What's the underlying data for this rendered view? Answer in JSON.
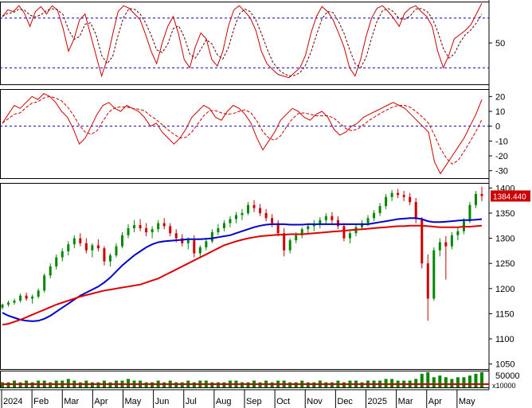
{
  "chart_data": [
    {
      "type": "line",
      "panel": "oscillator-1",
      "y_ticks": [
        50
      ],
      "ylim": [
        0,
        100
      ],
      "overbought": 80,
      "oversold": 20,
      "series_colors": {
        "main": "#cc0000",
        "signal": "#660000"
      },
      "values": [
        82,
        90,
        88,
        95,
        86,
        70,
        88,
        94,
        85,
        95,
        90,
        68,
        40,
        55,
        78,
        85,
        60,
        35,
        10,
        30,
        60,
        88,
        95,
        92,
        85,
        78,
        60,
        40,
        25,
        50,
        70,
        82,
        60,
        30,
        20,
        45,
        62,
        55,
        30,
        22,
        40,
        70,
        90,
        95,
        88,
        80,
        65,
        40,
        25,
        18,
        12,
        10,
        8,
        14,
        20,
        35,
        62,
        82,
        94,
        88,
        78,
        62,
        45,
        20,
        10,
        30,
        58,
        80,
        92,
        95,
        88,
        80,
        70,
        86,
        92,
        95,
        88,
        82,
        70,
        40,
        20,
        35,
        55,
        60,
        65,
        72,
        85,
        98
      ]
    },
    {
      "type": "line",
      "panel": "oscillator-2",
      "y_ticks": [
        20,
        10,
        0,
        -10,
        -20,
        -30
      ],
      "ylim": [
        -35,
        25
      ],
      "zero_line": 0,
      "series_colors": {
        "main": "#cc0000",
        "signal": "#cc0000"
      },
      "values": [
        2,
        8,
        14,
        12,
        16,
        20,
        18,
        22,
        20,
        16,
        10,
        6,
        -2,
        -12,
        -8,
        0,
        8,
        14,
        16,
        12,
        10,
        14,
        12,
        10,
        6,
        0,
        2,
        -4,
        -8,
        -12,
        -8,
        -2,
        6,
        10,
        14,
        12,
        6,
        4,
        10,
        14,
        12,
        8,
        2,
        -8,
        -16,
        -10,
        -4,
        4,
        8,
        12,
        10,
        6,
        4,
        8,
        10,
        6,
        -2,
        -6,
        -4,
        0,
        2,
        6,
        8,
        10,
        12,
        14,
        16,
        14,
        12,
        8,
        4,
        0,
        -4,
        -24,
        -32,
        -26,
        -20,
        -14,
        -8,
        0,
        8,
        18
      ]
    },
    {
      "type": "candlestick",
      "panel": "price",
      "y_ticks": [
        1400,
        1350,
        1300,
        1250,
        1200,
        1150,
        1100,
        1050
      ],
      "ylim": [
        1040,
        1410
      ],
      "last_price_label": "1384.440",
      "ma_colors": {
        "short": "#0000cc",
        "long": "#dd0000"
      },
      "candles": [
        [
          1162,
          1170,
          1158,
          1168
        ],
        [
          1168,
          1176,
          1164,
          1172
        ],
        [
          1172,
          1180,
          1168,
          1176
        ],
        [
          1176,
          1190,
          1172,
          1186
        ],
        [
          1186,
          1192,
          1176,
          1180
        ],
        [
          1180,
          1188,
          1170,
          1184
        ],
        [
          1184,
          1200,
          1180,
          1196
        ],
        [
          1196,
          1230,
          1192,
          1226
        ],
        [
          1226,
          1250,
          1220,
          1244
        ],
        [
          1244,
          1268,
          1238,
          1262
        ],
        [
          1262,
          1280,
          1254,
          1274
        ],
        [
          1274,
          1294,
          1266,
          1288
        ],
        [
          1288,
          1306,
          1280,
          1300
        ],
        [
          1300,
          1310,
          1284,
          1290
        ],
        [
          1290,
          1300,
          1270,
          1276
        ],
        [
          1276,
          1290,
          1262,
          1286
        ],
        [
          1286,
          1298,
          1274,
          1280
        ],
        [
          1280,
          1284,
          1246,
          1254
        ],
        [
          1254,
          1270,
          1244,
          1266
        ],
        [
          1266,
          1290,
          1262,
          1284
        ],
        [
          1284,
          1312,
          1280,
          1306
        ],
        [
          1306,
          1328,
          1300,
          1320
        ],
        [
          1320,
          1336,
          1312,
          1326
        ],
        [
          1326,
          1338,
          1314,
          1320
        ],
        [
          1320,
          1330,
          1304,
          1312
        ],
        [
          1312,
          1324,
          1300,
          1318
        ],
        [
          1318,
          1336,
          1312,
          1330
        ],
        [
          1330,
          1340,
          1318,
          1324
        ],
        [
          1324,
          1330,
          1304,
          1310
        ],
        [
          1310,
          1318,
          1292,
          1300
        ],
        [
          1300,
          1308,
          1284,
          1290
        ],
        [
          1290,
          1302,
          1278,
          1296
        ],
        [
          1296,
          1306,
          1262,
          1270
        ],
        [
          1270,
          1286,
          1260,
          1282
        ],
        [
          1282,
          1300,
          1276,
          1294
        ],
        [
          1294,
          1318,
          1290,
          1312
        ],
        [
          1312,
          1328,
          1306,
          1320
        ],
        [
          1320,
          1336,
          1314,
          1330
        ],
        [
          1330,
          1344,
          1322,
          1338
        ],
        [
          1338,
          1352,
          1330,
          1346
        ],
        [
          1346,
          1358,
          1336,
          1350
        ],
        [
          1350,
          1372,
          1346,
          1366
        ],
        [
          1366,
          1376,
          1352,
          1360
        ],
        [
          1360,
          1368,
          1344,
          1350
        ],
        [
          1350,
          1358,
          1334,
          1340
        ],
        [
          1340,
          1348,
          1322,
          1330
        ],
        [
          1330,
          1336,
          1304,
          1310
        ],
        [
          1310,
          1320,
          1264,
          1276
        ],
        [
          1276,
          1300,
          1270,
          1296
        ],
        [
          1296,
          1312,
          1290,
          1306
        ],
        [
          1306,
          1322,
          1300,
          1318
        ],
        [
          1318,
          1330,
          1310,
          1324
        ],
        [
          1324,
          1336,
          1314,
          1328
        ],
        [
          1328,
          1342,
          1320,
          1336
        ],
        [
          1336,
          1350,
          1328,
          1344
        ],
        [
          1344,
          1352,
          1330,
          1336
        ],
        [
          1336,
          1344,
          1318,
          1324
        ],
        [
          1324,
          1330,
          1294,
          1300
        ],
        [
          1300,
          1314,
          1290,
          1310
        ],
        [
          1310,
          1328,
          1304,
          1322
        ],
        [
          1322,
          1336,
          1316,
          1330
        ],
        [
          1330,
          1346,
          1324,
          1340
        ],
        [
          1340,
          1356,
          1334,
          1350
        ],
        [
          1350,
          1370,
          1344,
          1364
        ],
        [
          1364,
          1388,
          1358,
          1382
        ],
        [
          1382,
          1396,
          1374,
          1390
        ],
        [
          1390,
          1398,
          1380,
          1386
        ],
        [
          1386,
          1394,
          1374,
          1382
        ],
        [
          1382,
          1390,
          1366,
          1372
        ],
        [
          1372,
          1380,
          1330,
          1338
        ],
        [
          1338,
          1342,
          1240,
          1250
        ],
        [
          1250,
          1268,
          1136,
          1180
        ],
        [
          1180,
          1282,
          1176,
          1276
        ],
        [
          1276,
          1300,
          1264,
          1292
        ],
        [
          1292,
          1304,
          1218,
          1284
        ],
        [
          1284,
          1312,
          1278,
          1306
        ],
        [
          1306,
          1320,
          1296,
          1314
        ],
        [
          1314,
          1340,
          1308,
          1334
        ],
        [
          1334,
          1372,
          1330,
          1366
        ],
        [
          1366,
          1394,
          1360,
          1388
        ],
        [
          1388,
          1402,
          1374,
          1384
        ]
      ],
      "ma_short": [
        1152,
        1146,
        1142,
        1138,
        1136,
        1135,
        1136,
        1140,
        1146,
        1154,
        1162,
        1170,
        1178,
        1186,
        1192,
        1198,
        1204,
        1212,
        1222,
        1234,
        1246,
        1256,
        1266,
        1274,
        1282,
        1288,
        1292,
        1294,
        1295,
        1296,
        1297,
        1298,
        1298,
        1298,
        1299,
        1300,
        1302,
        1304,
        1306,
        1310,
        1314,
        1318,
        1322,
        1325,
        1327,
        1328,
        1328,
        1328,
        1327,
        1327,
        1327,
        1328,
        1328,
        1328,
        1328,
        1328,
        1328,
        1328,
        1328,
        1328,
        1328,
        1328,
        1330,
        1332,
        1334,
        1336,
        1338,
        1339,
        1340,
        1340,
        1338,
        1334,
        1332,
        1332,
        1333,
        1334,
        1335,
        1336,
        1336,
        1337,
        1338
      ],
      "ma_long": [
        1128,
        1130,
        1134,
        1138,
        1143,
        1148,
        1153,
        1158,
        1163,
        1168,
        1172,
        1176,
        1180,
        1184,
        1187,
        1190,
        1193,
        1196,
        1198,
        1200,
        1202,
        1204,
        1206,
        1208,
        1212,
        1216,
        1220,
        1226,
        1232,
        1238,
        1244,
        1250,
        1256,
        1262,
        1268,
        1274,
        1280,
        1286,
        1290,
        1294,
        1297,
        1300,
        1302,
        1304,
        1305,
        1306,
        1307,
        1307,
        1308,
        1308,
        1308,
        1309,
        1310,
        1311,
        1312,
        1313,
        1314,
        1315,
        1316,
        1317,
        1318,
        1319,
        1320,
        1321,
        1322,
        1323,
        1324,
        1324,
        1325,
        1325,
        1325,
        1324,
        1323,
        1322,
        1322,
        1322,
        1322,
        1323,
        1323,
        1324,
        1325
      ]
    },
    {
      "type": "bar",
      "panel": "volume",
      "y_tick_label": "50000",
      "unit_label": "x10000",
      "bar_color": "#008800",
      "values": [
        3,
        3,
        4,
        3,
        4,
        3,
        4,
        4,
        3,
        4,
        4,
        5,
        4,
        3,
        4,
        3,
        3,
        4,
        3,
        4,
        4,
        5,
        4,
        4,
        3,
        3,
        4,
        3,
        4,
        3,
        3,
        4,
        3,
        4,
        4,
        3,
        3,
        3,
        4,
        4,
        3,
        3,
        4,
        3,
        4,
        3,
        4,
        4,
        3,
        3,
        4,
        3,
        3,
        4,
        3,
        3,
        4,
        3,
        4,
        4,
        3,
        4,
        4,
        4,
        5,
        5,
        4,
        4,
        4,
        5,
        8,
        9,
        6,
        7,
        6,
        5,
        6,
        6,
        7,
        8,
        9
      ]
    },
    {
      "type": "axis",
      "panel": "x-axis",
      "month_labels": [
        "2024",
        "Feb",
        "Mar",
        "Apr",
        "May",
        "Jun",
        "Jul",
        "Aug",
        "Sep",
        "Oct",
        "Nov",
        "Dec",
        "2025",
        "Mar",
        "Apr",
        "May"
      ]
    }
  ]
}
